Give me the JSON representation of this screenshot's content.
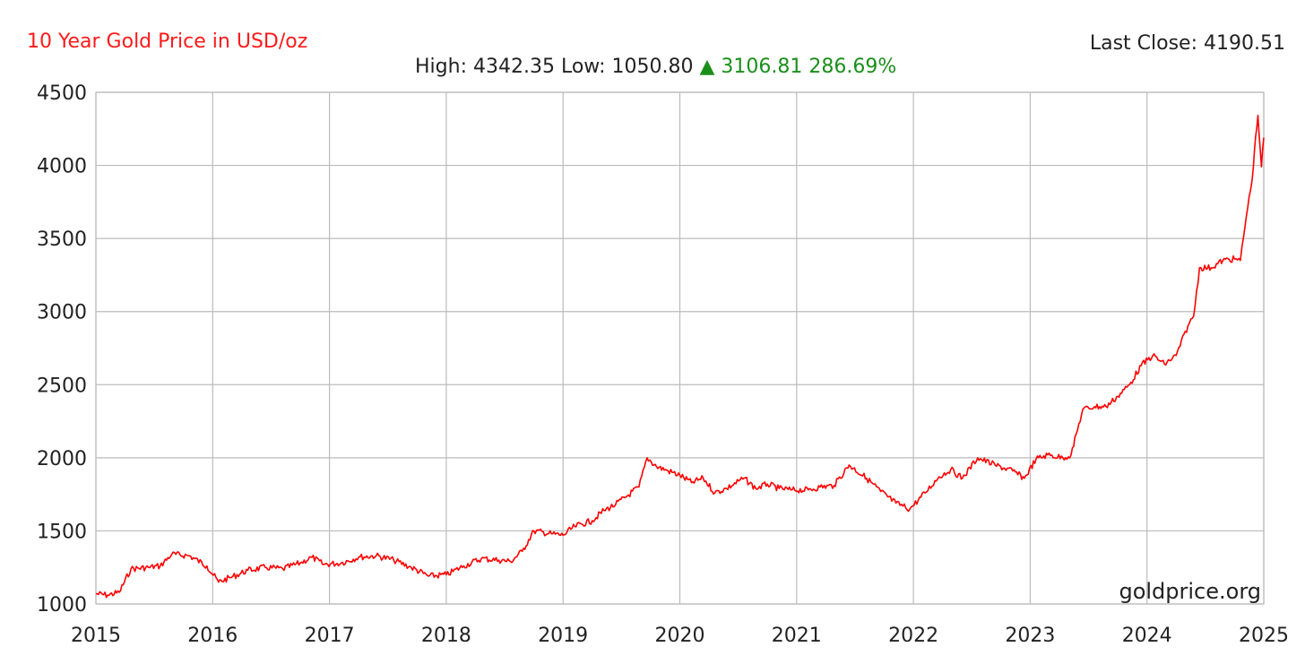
{
  "header": {
    "title": "10 Year Gold Price in USD/oz",
    "last_close_label": "Last Close:",
    "last_close_value": "4190.51",
    "high_label": "High:",
    "high_value": "4342.35",
    "low_label": "Low:",
    "low_value": "1050.80",
    "change_arrow": "▲",
    "change_value": "3106.81",
    "change_percent": "286.69%"
  },
  "watermark": "goldprice.org",
  "colors": {
    "line": "#ff0000",
    "title": "#ff1a1a",
    "positive_change": "#1a8f1a",
    "grid": "#bbbbbb",
    "text": "#222222"
  },
  "chart_data": {
    "type": "line",
    "title": "10 Year Gold Price in USD/oz",
    "xlabel": "",
    "ylabel": "",
    "xlim": [
      2015,
      2025
    ],
    "ylim": [
      1000,
      4500
    ],
    "grid": true,
    "x_ticks": [
      "2015",
      "2016",
      "2017",
      "2018",
      "2019",
      "2020",
      "2021",
      "2022",
      "2023",
      "2024",
      "2025"
    ],
    "y_ticks": [
      "1000",
      "1500",
      "2000",
      "2500",
      "3000",
      "3500",
      "4000",
      "4500"
    ],
    "series": [
      {
        "color": "#ff0000",
        "x": [
          2015.0,
          2015.1,
          2015.2,
          2015.3,
          2015.45,
          2015.55,
          2015.65,
          2015.8,
          2015.95,
          2016.05,
          2016.15,
          2016.3,
          2016.45,
          2016.6,
          2016.75,
          2016.85,
          2016.95,
          2017.1,
          2017.25,
          2017.4,
          2017.55,
          2017.7,
          2017.85,
          2018.0,
          2018.15,
          2018.3,
          2018.45,
          2018.55,
          2018.65,
          2018.75,
          2018.9,
          2019.0,
          2019.1,
          2019.25,
          2019.35,
          2019.45,
          2019.55,
          2019.65,
          2019.72,
          2019.8,
          2019.9,
          2020.0,
          2020.1,
          2020.2,
          2020.3,
          2020.4,
          2020.55,
          2020.65,
          2020.75,
          2020.85,
          2020.95,
          2021.1,
          2021.2,
          2021.32,
          2021.45,
          2021.6,
          2021.72,
          2021.85,
          2021.97,
          2022.1,
          2022.22,
          2022.32,
          2022.42,
          2022.55,
          2022.7,
          2022.85,
          2022.95,
          2023.05,
          2023.15,
          2023.28,
          2023.35,
          2023.45,
          2023.55,
          2023.65,
          2023.75,
          2023.85,
          2023.95,
          2024.05,
          2024.15,
          2024.25,
          2024.35,
          2024.4,
          2024.45,
          2024.55,
          2024.65,
          2024.75,
          2024.8,
          2024.85,
          2024.9,
          2024.92,
          2024.95,
          2024.98,
          2025.0
        ],
        "y": [
          1070,
          1060,
          1080,
          1240,
          1250,
          1260,
          1340,
          1330,
          1260,
          1150,
          1180,
          1230,
          1250,
          1240,
          1280,
          1320,
          1270,
          1280,
          1320,
          1330,
          1300,
          1250,
          1190,
          1200,
          1260,
          1310,
          1300,
          1290,
          1360,
          1500,
          1480,
          1470,
          1530,
          1570,
          1640,
          1680,
          1740,
          1800,
          2000,
          1940,
          1910,
          1880,
          1830,
          1860,
          1760,
          1790,
          1860,
          1790,
          1820,
          1790,
          1780,
          1780,
          1800,
          1810,
          1950,
          1860,
          1770,
          1690,
          1650,
          1760,
          1870,
          1920,
          1860,
          2000,
          1950,
          1910,
          1860,
          1990,
          2020,
          2000,
          2020,
          2330,
          2350,
          2350,
          2420,
          2500,
          2630,
          2700,
          2640,
          2700,
          2900,
          2970,
          3300,
          3300,
          3350,
          3360,
          3350,
          3650,
          3900,
          4100,
          4342,
          3990,
          4190
        ]
      }
    ]
  }
}
